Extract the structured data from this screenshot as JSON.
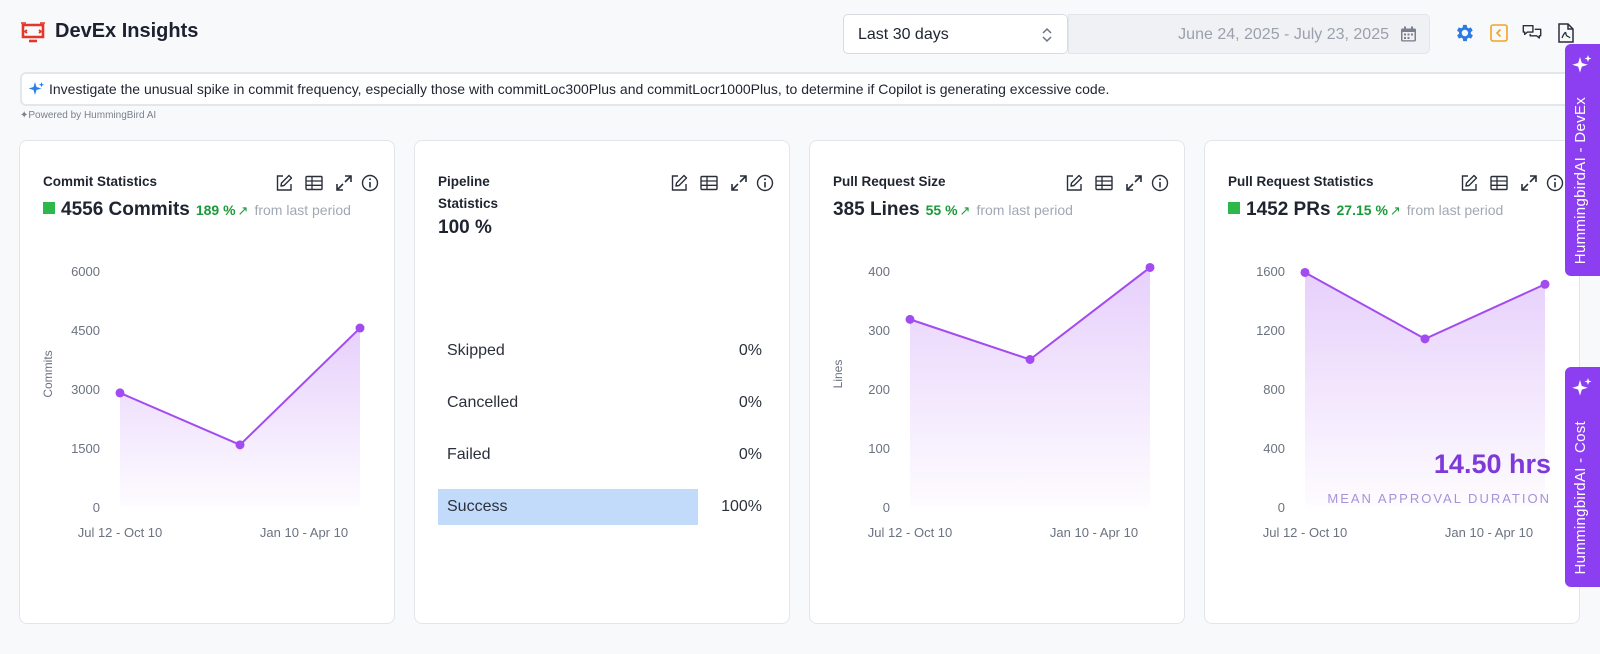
{
  "app": {
    "title": "DevEx Insights"
  },
  "header": {
    "range_label": "Last 30 days",
    "date_range": "June 24, 2025 - July 23, 2025",
    "icons": [
      "settings-icon",
      "collapse-icon",
      "chat-icon",
      "export-pdf-icon"
    ]
  },
  "banner": {
    "text": "Investigate the unusual spike in commit frequency, especially those with commitLoc300Plus and commitLocr1000Plus, to determine if Copilot is generating excessive code.",
    "powered_by": "✦Powered by HummingBird AI"
  },
  "colors": {
    "accent": "#8b3ff0",
    "line": "#a24bf0",
    "positive": "#1b9a3a",
    "status_square": "#2db84c",
    "highlight": "#c2dbfb"
  },
  "cards": {
    "commit": {
      "title": "Commit Statistics",
      "value": "4556 Commits",
      "change": "189 %",
      "arrow": "↗",
      "from": "from last period"
    },
    "pipeline": {
      "title_line1": "Pipeline",
      "title_line2": "Statistics",
      "value": "100 %",
      "rows": [
        {
          "name": "Skipped",
          "value": "0%",
          "fraction": 0
        },
        {
          "name": "Cancelled",
          "value": "0%",
          "fraction": 0
        },
        {
          "name": "Failed",
          "value": "0%",
          "fraction": 0
        },
        {
          "name": "Success",
          "value": "100%",
          "fraction": 1
        }
      ]
    },
    "pr_size": {
      "title": "Pull Request Size",
      "value": "385 Lines",
      "change": "55 %",
      "arrow": "↗",
      "from": "from last period"
    },
    "pr_stats": {
      "title": "Pull Request Statistics",
      "value": "1452 PRs",
      "change": "27.15 %",
      "arrow": "↗",
      "from": "from last period",
      "mean_value": "14.50 hrs",
      "mean_label": "MEAN APPROVAL DURATION"
    }
  },
  "side_tabs": {
    "devex": "HummingbirdAI - DevEx",
    "cost": "HummingbirdAI - Cost"
  },
  "chart_data": [
    {
      "type": "area",
      "ylabel": "Commits",
      "yticks": [
        0,
        1500,
        3000,
        4500,
        6000
      ],
      "ylim": [
        0,
        6000
      ],
      "xticks": [
        "Jul 12 - Oct 10",
        "Jan 10 - Apr 10"
      ],
      "values": [
        2900,
        1580,
        4550
      ]
    },
    {
      "type": "area",
      "ylabel": "Lines",
      "yticks": [
        0,
        100,
        200,
        300,
        400
      ],
      "ylim": [
        0,
        400
      ],
      "xticks": [
        "Jul 12 - Oct 10",
        "Jan 10 - Apr 10"
      ],
      "values": [
        318,
        250,
        406
      ]
    },
    {
      "type": "area",
      "ylabel": "",
      "yticks": [
        0,
        400,
        800,
        1200,
        1600
      ],
      "ylim": [
        0,
        1600
      ],
      "xticks": [
        "Jul 12 - Oct 10",
        "Jan 10 - Apr 10"
      ],
      "values": [
        1590,
        1140,
        1510
      ]
    }
  ]
}
